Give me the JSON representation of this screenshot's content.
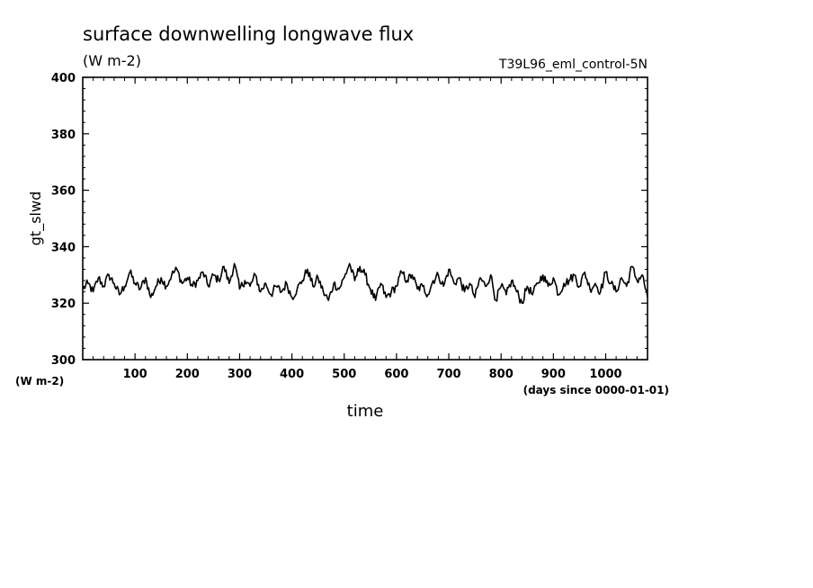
{
  "chart_data": {
    "type": "line",
    "title": "surface downwelling longwave flux",
    "units": "(W m-2)",
    "run_label": "T39L96_eml_control-5N",
    "ylabel": "gt_slwd",
    "xlabel": "time",
    "y_units": "(W m-2)",
    "x_units": "(days since 0000-01-01)",
    "xlim": [
      0,
      1080
    ],
    "ylim": [
      300,
      400
    ],
    "xticks": [
      100,
      200,
      300,
      400,
      500,
      600,
      700,
      800,
      900,
      1000
    ],
    "yticks": [
      300,
      320,
      340,
      360,
      380,
      400
    ],
    "grid": false,
    "series": [
      {
        "x": [
          0,
          10,
          20,
          30,
          40,
          50,
          60,
          70,
          80,
          90,
          100,
          110,
          120,
          130,
          140,
          150,
          160,
          170,
          180,
          190,
          200,
          210,
          220,
          230,
          240,
          250,
          260,
          270,
          280,
          290,
          300,
          310,
          320,
          330,
          340,
          350,
          360,
          370,
          380,
          390,
          400,
          410,
          420,
          430,
          440,
          450,
          460,
          470,
          480,
          490,
          500,
          510,
          520,
          530,
          540,
          550,
          560,
          570,
          580,
          590,
          600,
          610,
          620,
          630,
          640,
          650,
          660,
          670,
          680,
          690,
          700,
          710,
          720,
          730,
          740,
          750,
          760,
          770,
          780,
          790,
          800,
          810,
          820,
          830,
          840,
          850,
          860,
          870,
          880,
          890,
          900,
          910,
          920,
          930,
          940,
          950,
          960,
          970,
          980,
          990,
          1000,
          1010,
          1020,
          1030,
          1040,
          1050,
          1060,
          1070,
          1080
        ],
        "y": [
          325,
          327,
          324,
          329,
          326,
          330,
          327,
          323,
          326,
          331,
          327,
          325,
          329,
          322,
          326,
          329,
          326,
          330,
          332,
          327,
          329,
          326,
          328,
          331,
          326,
          330,
          328,
          333,
          327,
          334,
          325,
          328,
          326,
          330,
          324,
          327,
          323,
          326,
          324,
          327,
          322,
          325,
          328,
          332,
          326,
          329,
          324,
          321,
          327,
          325,
          329,
          334,
          328,
          333,
          330,
          325,
          321,
          327,
          322,
          324,
          326,
          331,
          328,
          330,
          325,
          326,
          323,
          328,
          330,
          326,
          332,
          327,
          329,
          324,
          327,
          322,
          329,
          326,
          330,
          321,
          326,
          323,
          328,
          324,
          320,
          326,
          323,
          327,
          330,
          326,
          329,
          323,
          327,
          328,
          330,
          326,
          331,
          325,
          327,
          324,
          331,
          327,
          324,
          329,
          326,
          333,
          328,
          330,
          322
        ]
      }
    ]
  }
}
